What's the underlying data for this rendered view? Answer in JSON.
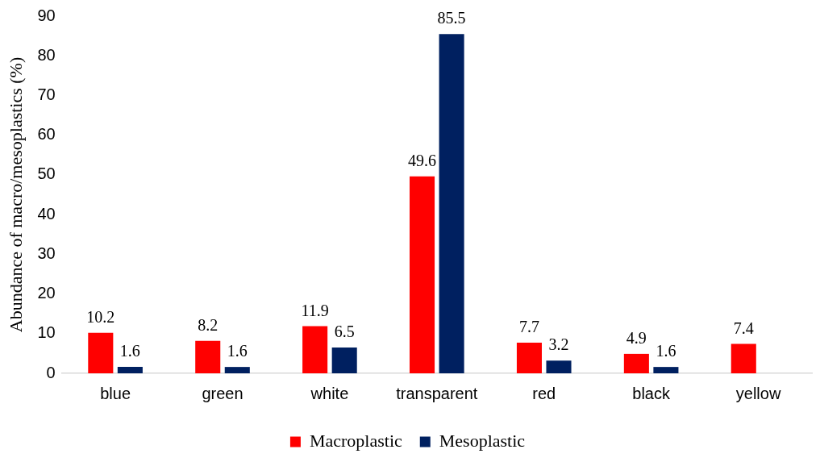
{
  "chart_data": {
    "type": "bar",
    "ylabel": "Abundance of macro/mesoplastics (%)",
    "categories": [
      "blue",
      "green",
      "white",
      "transparent",
      "red",
      "black",
      "yellow"
    ],
    "series": [
      {
        "name": "Macroplastic",
        "color": "#ff0000",
        "values": [
          10.2,
          8.2,
          11.9,
          49.6,
          7.7,
          4.9,
          7.4
        ]
      },
      {
        "name": "Mesoplastic",
        "color": "#002060",
        "values": [
          1.6,
          1.6,
          6.5,
          85.5,
          3.2,
          1.6,
          null
        ]
      }
    ],
    "ylim": [
      0,
      90
    ],
    "yticks": [
      0,
      10,
      20,
      30,
      40,
      50,
      60,
      70,
      80,
      90
    ],
    "grid": false,
    "legend": "bottom",
    "data_labels": true
  }
}
